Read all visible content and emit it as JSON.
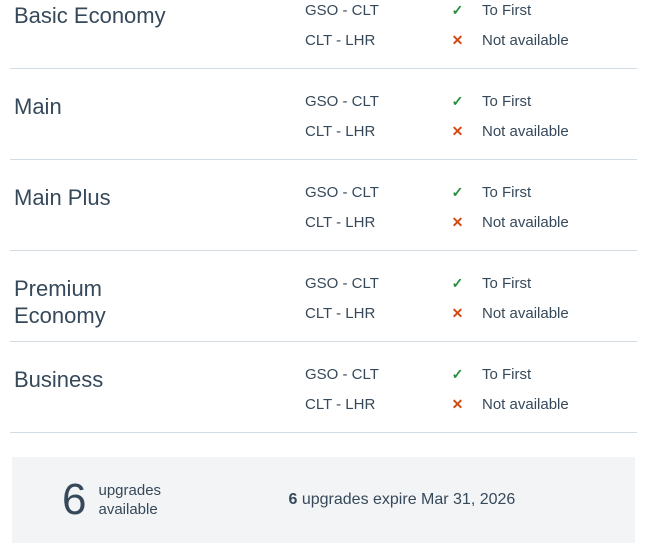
{
  "colors": {
    "text": "#36495a",
    "divider": "#d2dce2",
    "check_green": "#278c3c",
    "cross_red": "#d24a12",
    "footer_background": "#f3f4f5"
  },
  "icons": {
    "check": "✓",
    "cross": "✕"
  },
  "table": {
    "rows": [
      {
        "name": "Basic Economy",
        "segments": [
          {
            "route": "GSO - CLT",
            "status": "To First",
            "available": true
          },
          {
            "route": "CLT - LHR",
            "status": "Not available",
            "available": false
          }
        ]
      },
      {
        "name": "Main",
        "segments": [
          {
            "route": "GSO - CLT",
            "status": "To First",
            "available": true
          },
          {
            "route": "CLT - LHR",
            "status": "Not available",
            "available": false
          }
        ]
      },
      {
        "name": "Main Plus",
        "segments": [
          {
            "route": "GSO - CLT",
            "status": "To First",
            "available": true
          },
          {
            "route": "CLT - LHR",
            "status": "Not available",
            "available": false
          }
        ]
      },
      {
        "name": "Premium Economy",
        "segments": [
          {
            "route": "GSO - CLT",
            "status": "To First",
            "available": true
          },
          {
            "route": "CLT - LHR",
            "status": "Not available",
            "available": false
          }
        ]
      },
      {
        "name": "Business",
        "segments": [
          {
            "route": "GSO - CLT",
            "status": "To First",
            "available": true
          },
          {
            "route": "CLT - LHR",
            "status": "Not available",
            "available": false
          }
        ]
      }
    ]
  },
  "footer": {
    "count": "6",
    "count_label": "upgrades available",
    "expiry_count": "6",
    "expiry_text": "upgrades expire Mar 31, 2026"
  }
}
